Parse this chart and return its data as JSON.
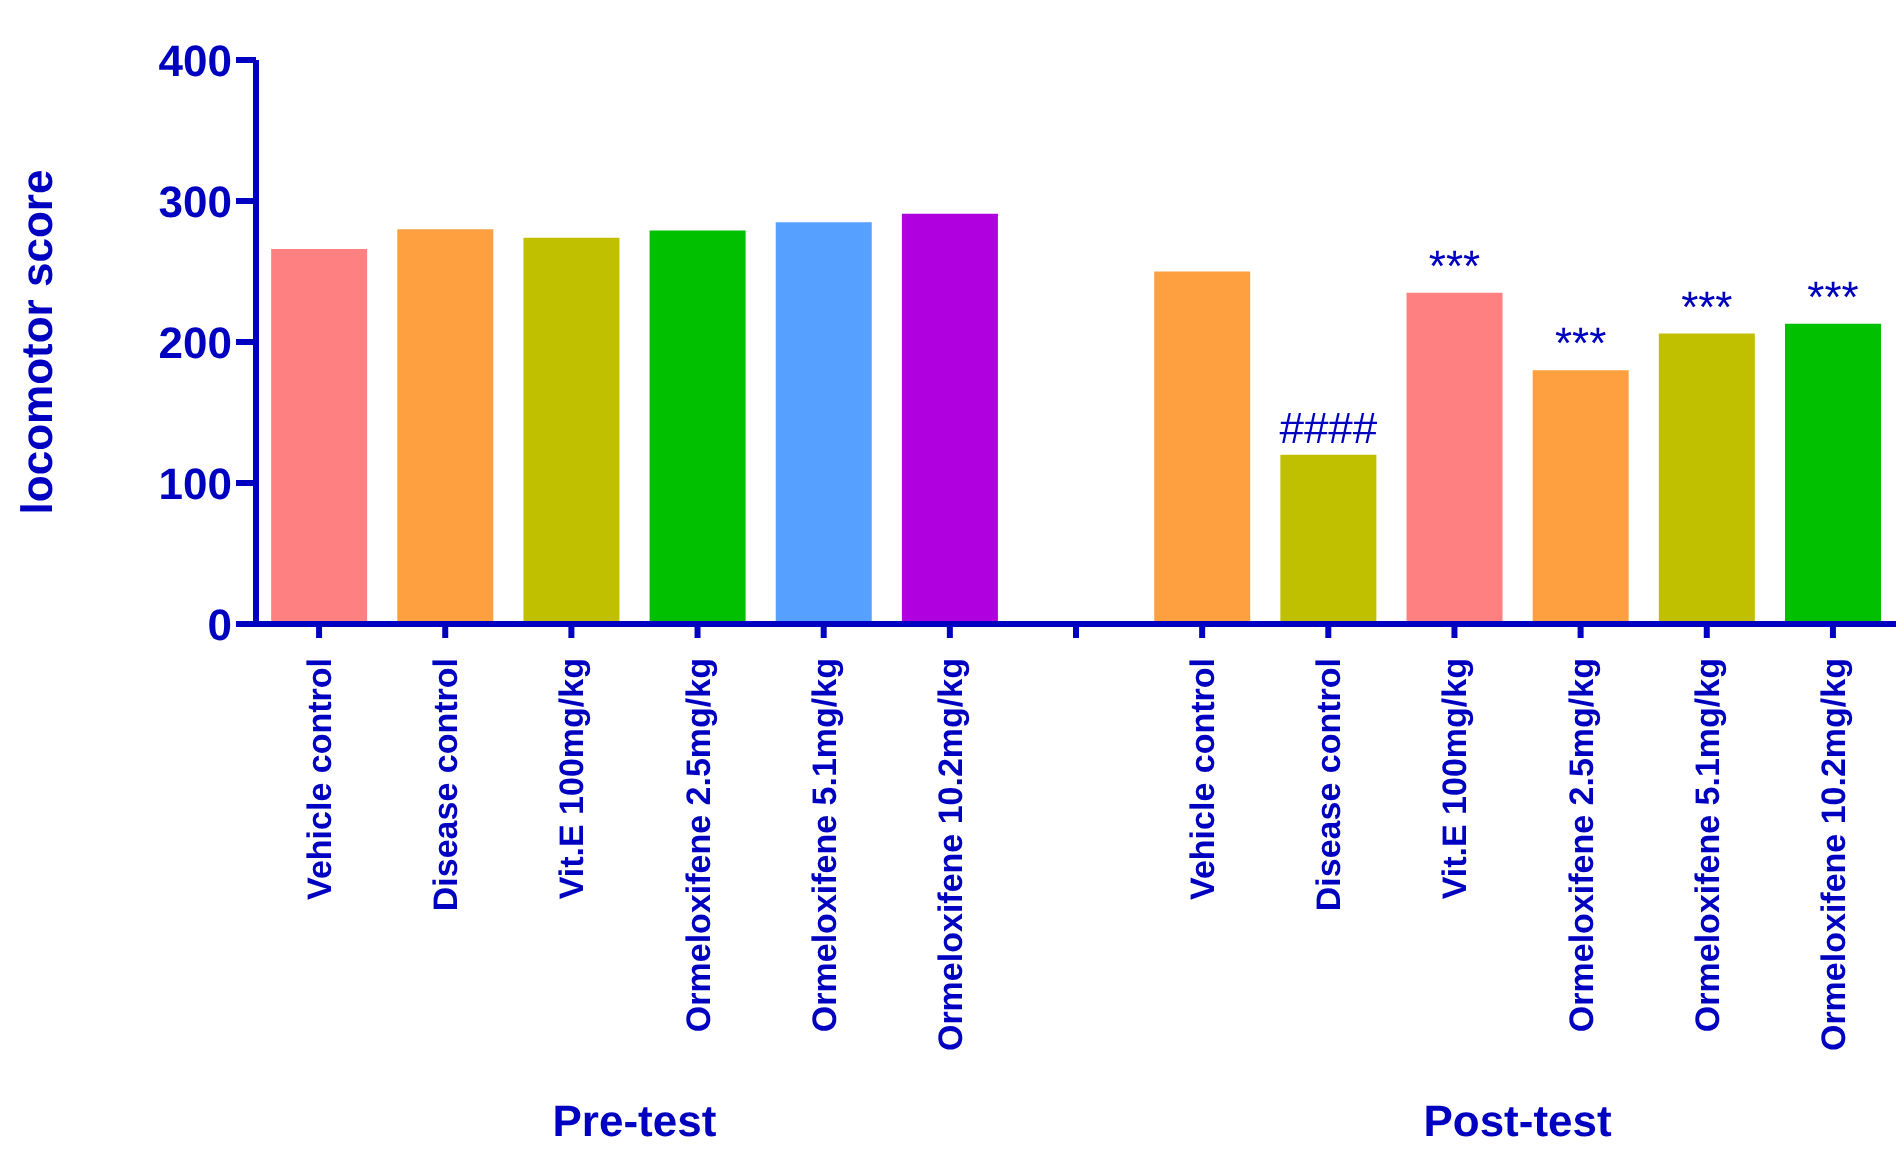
{
  "chart_data": {
    "type": "bar",
    "ylabel": "locomotor score",
    "categories": [
      "Vehicle control",
      "Disease control",
      "Vit.E 100mg/kg",
      "Ormeloxifene 2.5mg/kg",
      "Ormeloxifene 5.1mg/kg",
      "Ormeloxifene 10.2mg/kg",
      null,
      "Vehicle control",
      "Disease control",
      "Vit.E 100mg/kg",
      "Ormeloxifene 2.5mg/kg",
      "Ormeloxifene 5.1mg/kg",
      "Ormeloxifene 10.2mg/kg"
    ],
    "values": [
      266,
      280,
      274,
      279,
      285,
      291,
      null,
      250,
      120,
      235,
      180,
      206,
      213
    ],
    "colors": [
      "#ff8080",
      "#ffa040",
      "#c0c000",
      "#00c000",
      "#56a0ff",
      "#b000e0",
      "#ffffff",
      "#ffa040",
      "#c0c000",
      "#ff8080",
      "#ffa040",
      "#c0c000",
      "#00c000"
    ],
    "value_labels": [
      null,
      null,
      null,
      null,
      null,
      null,
      null,
      null,
      "####",
      "***",
      "***",
      "***",
      "***"
    ],
    "annotations": [
      "Pre-test",
      "Post-test"
    ],
    "ylim": [
      0,
      400
    ],
    "yticks": [
      0,
      100,
      200,
      300,
      400
    ]
  }
}
